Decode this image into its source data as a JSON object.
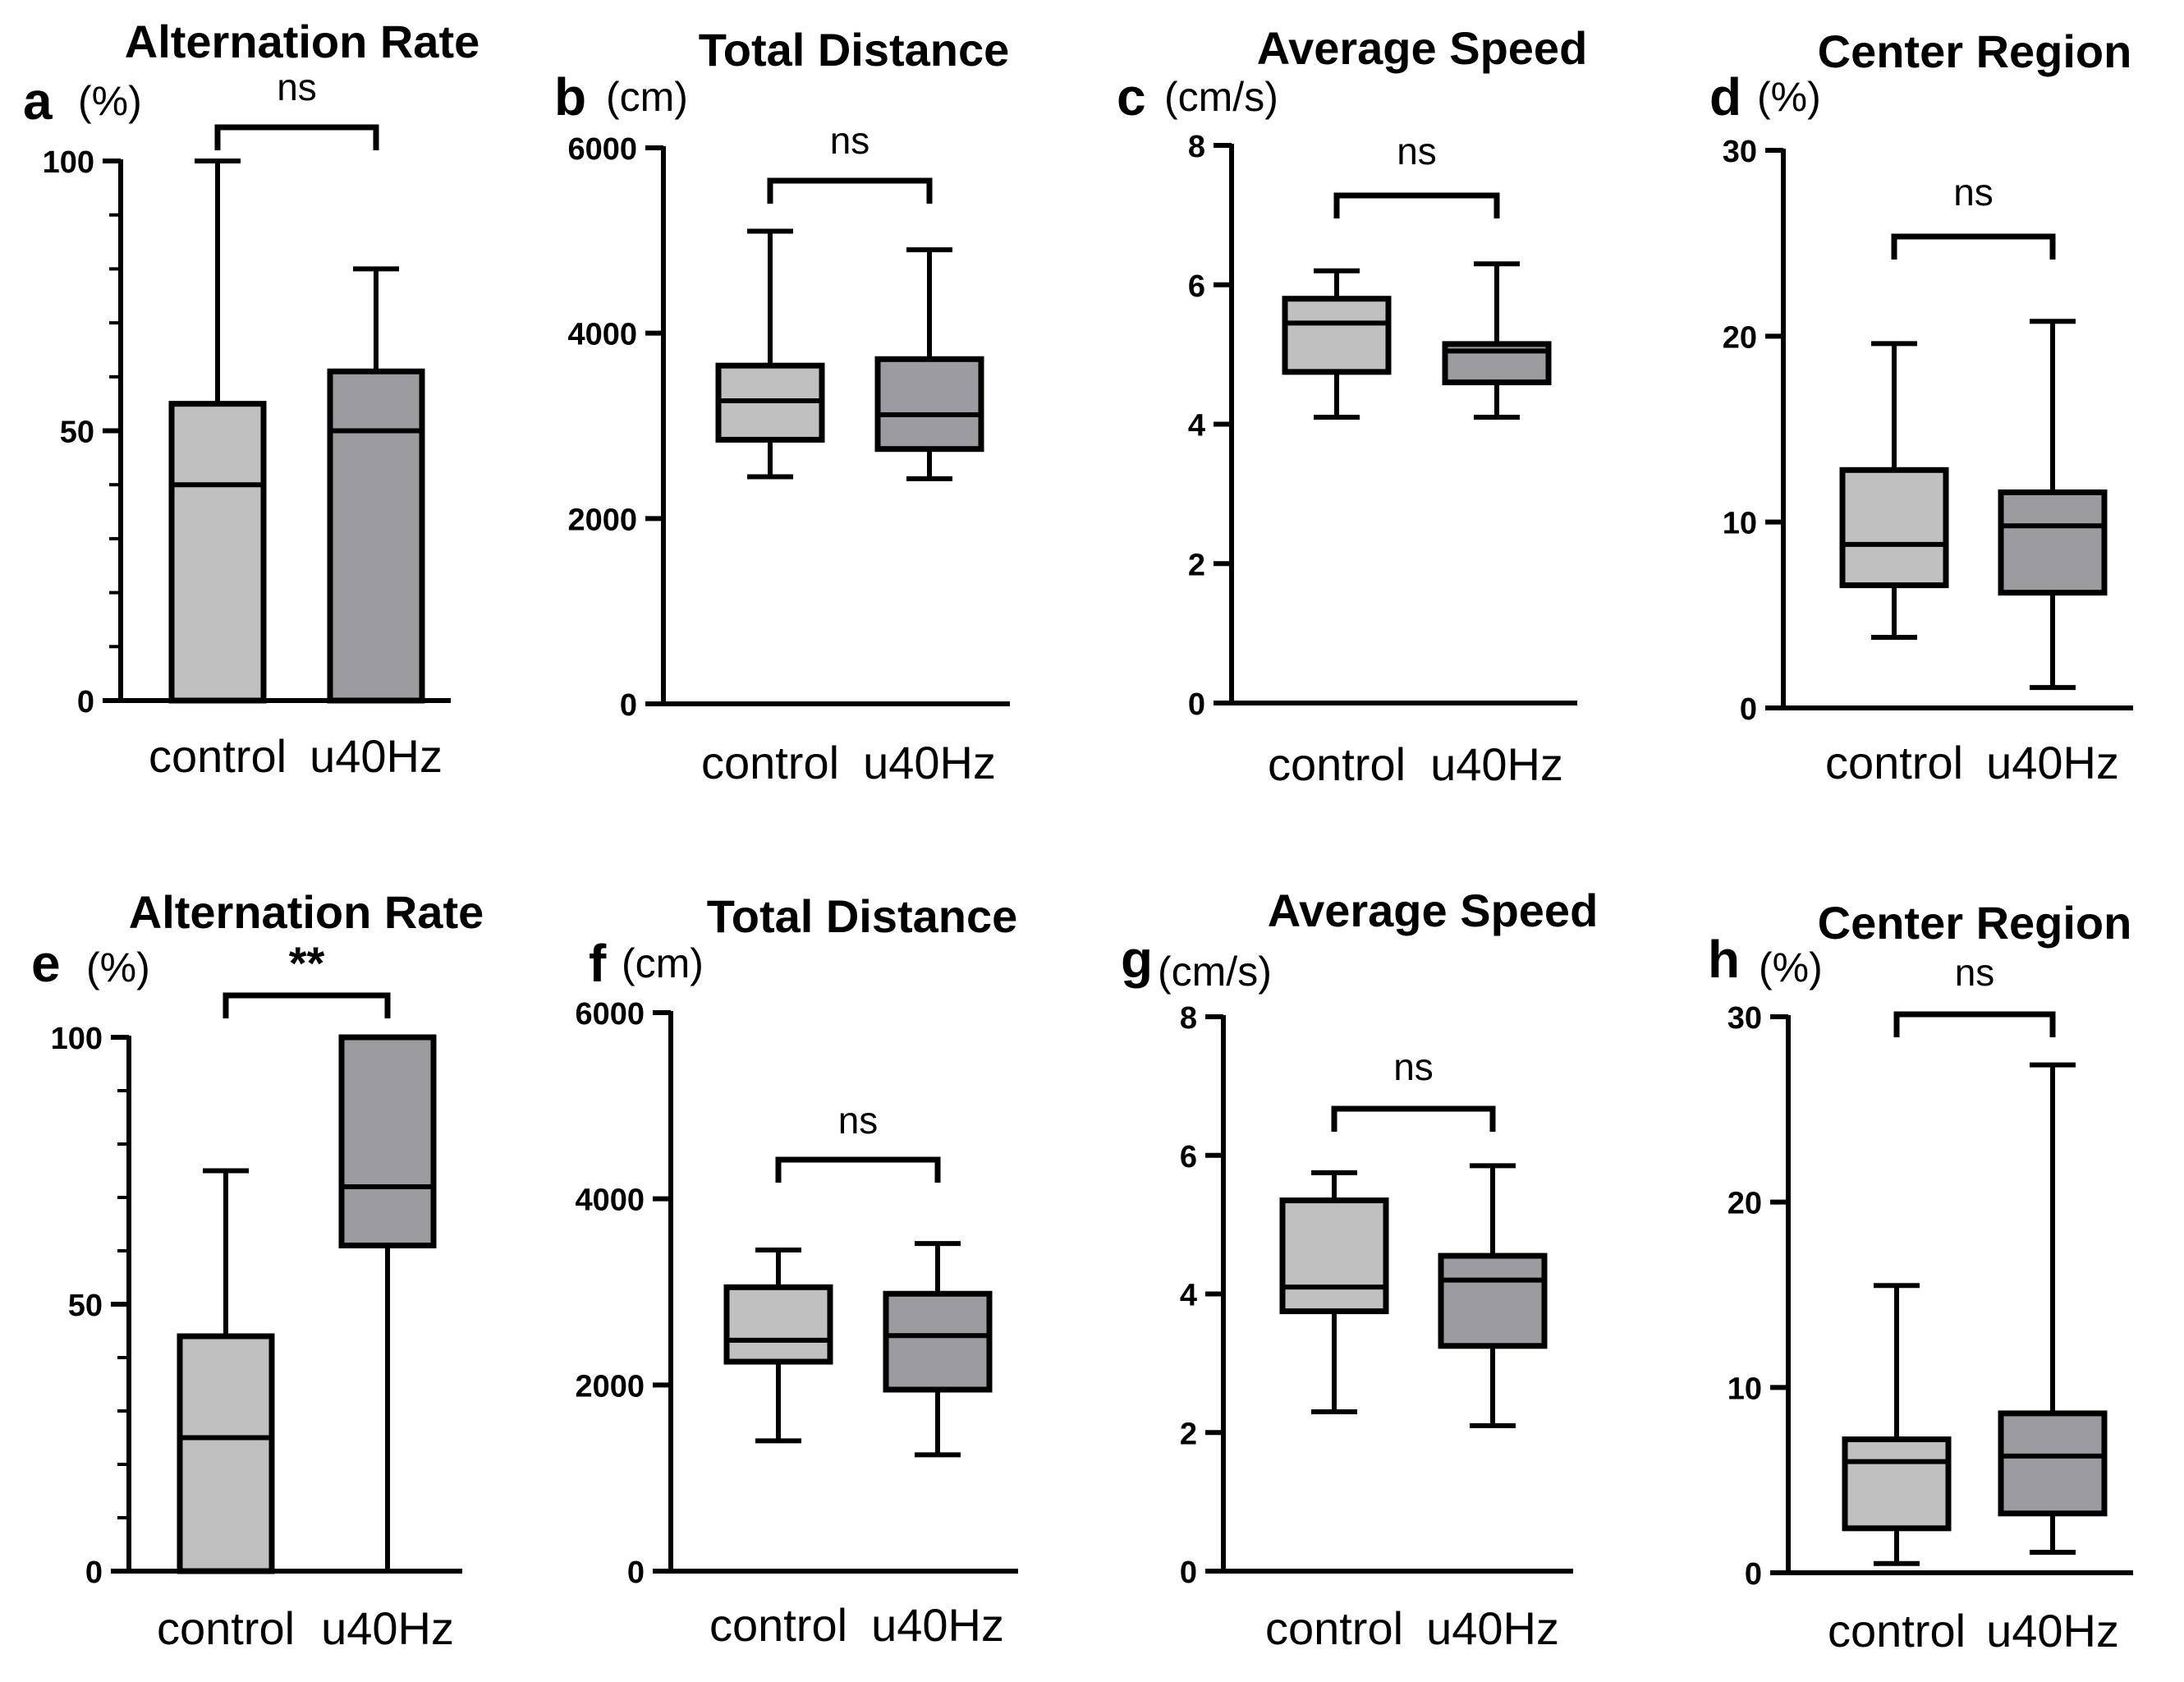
{
  "figure": {
    "colors": {
      "control": "#c0c0c0",
      "u40Hz": "#9c9ca0",
      "stroke": "#000000"
    }
  },
  "chart_data": [
    {
      "panel": "a",
      "type": "box",
      "title": "Alternation Rate",
      "ylabel": "(%)",
      "categories": [
        "control",
        "u40Hz"
      ],
      "ylim": [
        0,
        100
      ],
      "yticks": [
        "0",
        "50",
        "100"
      ],
      "minor_ticks": 10,
      "series": [
        {
          "name": "control",
          "min": 0,
          "q1": 0,
          "median": 40,
          "q3": 55,
          "max": 100
        },
        {
          "name": "u40Hz",
          "min": 0,
          "q1": 0,
          "median": 50,
          "q3": 61,
          "max": 80
        }
      ],
      "annotation": "ns"
    },
    {
      "panel": "b",
      "type": "box",
      "title": "Total Distance",
      "ylabel": "(cm)",
      "categories": [
        "control",
        "u40Hz"
      ],
      "ylim": [
        0,
        6000
      ],
      "yticks": [
        "0",
        "2000",
        "4000",
        "6000"
      ],
      "minor_ticks": 0,
      "series": [
        {
          "name": "control",
          "min": 2450,
          "q1": 2850,
          "median": 3270,
          "q3": 3650,
          "max": 5100
        },
        {
          "name": "u40Hz",
          "min": 2430,
          "q1": 2750,
          "median": 3120,
          "q3": 3720,
          "max": 4900
        }
      ],
      "annotation": "ns"
    },
    {
      "panel": "c",
      "type": "box",
      "title": "Average Speed",
      "ylabel": "(cm/s)",
      "categories": [
        "control",
        "u40Hz"
      ],
      "ylim": [
        0,
        8
      ],
      "yticks": [
        "0",
        "2",
        "4",
        "6",
        "8"
      ],
      "minor_ticks": 0,
      "series": [
        {
          "name": "control",
          "min": 4.1,
          "q1": 4.75,
          "median": 5.45,
          "q3": 5.8,
          "max": 6.2
        },
        {
          "name": "u40Hz",
          "min": 4.1,
          "q1": 4.6,
          "median": 5.05,
          "q3": 5.15,
          "max": 6.3
        }
      ],
      "annotation": "ns"
    },
    {
      "panel": "d",
      "type": "box",
      "title": "Center Region",
      "ylabel": "(%)",
      "categories": [
        "control",
        "u40Hz"
      ],
      "ylim": [
        0,
        30
      ],
      "yticks": [
        "0",
        "10",
        "20",
        "30"
      ],
      "minor_ticks": 0,
      "series": [
        {
          "name": "control",
          "min": 3.8,
          "q1": 6.6,
          "median": 8.8,
          "q3": 12.8,
          "max": 19.6
        },
        {
          "name": "u40Hz",
          "min": 1.1,
          "q1": 6.2,
          "median": 9.8,
          "q3": 11.6,
          "max": 20.8
        }
      ],
      "annotation": "ns"
    },
    {
      "panel": "e",
      "type": "box",
      "title": "Alternation Rate",
      "ylabel": "(%)",
      "categories": [
        "control",
        "u40Hz"
      ],
      "ylim": [
        0,
        100
      ],
      "yticks": [
        "0",
        "50",
        "100"
      ],
      "minor_ticks": 10,
      "series": [
        {
          "name": "control",
          "min": 0,
          "q1": 0,
          "median": 25,
          "q3": 44,
          "max": 75
        },
        {
          "name": "u40Hz",
          "min": 0,
          "q1": 61,
          "median": 72,
          "q3": 100,
          "max": 100
        }
      ],
      "annotation": "**"
    },
    {
      "panel": "f",
      "type": "box",
      "title": "Total Distance",
      "ylabel": "(cm)",
      "categories": [
        "control",
        "u40Hz"
      ],
      "ylim": [
        0,
        6000
      ],
      "yticks": [
        "0",
        "2000",
        "4000",
        "6000"
      ],
      "minor_ticks": 0,
      "series": [
        {
          "name": "control",
          "min": 1400,
          "q1": 2250,
          "median": 2480,
          "q3": 3050,
          "max": 3450
        },
        {
          "name": "u40Hz",
          "min": 1250,
          "q1": 1950,
          "median": 2530,
          "q3": 2980,
          "max": 3520
        }
      ],
      "annotation": "ns"
    },
    {
      "panel": "g",
      "type": "box",
      "title": "Average Speed",
      "ylabel": "(cm/s)",
      "categories": [
        "control",
        "u40Hz"
      ],
      "ylim": [
        0,
        8
      ],
      "yticks": [
        "0",
        "2",
        "4",
        "6",
        "8"
      ],
      "minor_ticks": 0,
      "series": [
        {
          "name": "control",
          "min": 2.3,
          "q1": 3.75,
          "median": 4.1,
          "q3": 5.35,
          "max": 5.75
        },
        {
          "name": "u40Hz",
          "min": 2.1,
          "q1": 3.25,
          "median": 4.2,
          "q3": 4.55,
          "max": 5.85
        }
      ],
      "annotation": "ns"
    },
    {
      "panel": "h",
      "type": "box",
      "title": "Center Region",
      "ylabel": "(%)",
      "categories": [
        "control",
        "u40Hz"
      ],
      "ylim": [
        0,
        30
      ],
      "yticks": [
        "0",
        "10",
        "20",
        "30"
      ],
      "minor_ticks": 0,
      "series": [
        {
          "name": "control",
          "min": 0.5,
          "q1": 2.4,
          "median": 6.0,
          "q3": 7.2,
          "max": 15.5
        },
        {
          "name": "u40Hz",
          "min": 1.1,
          "q1": 3.2,
          "median": 6.3,
          "q3": 8.6,
          "max": 27.4
        }
      ],
      "annotation": "ns"
    }
  ]
}
